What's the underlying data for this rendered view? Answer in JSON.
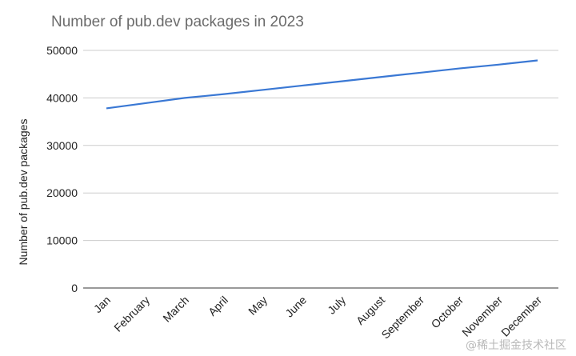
{
  "chart_data": {
    "type": "line",
    "title": "Number of pub.dev packages in 2023",
    "xlabel": "",
    "ylabel": "Number of pub.dev packages",
    "categories": [
      "Jan",
      "February",
      "March",
      "April",
      "May",
      "June",
      "July",
      "August",
      "September",
      "October",
      "November",
      "December"
    ],
    "series": [
      {
        "name": "Number of pub.dev packages",
        "color": "#3a78d4",
        "values": [
          37800,
          38900,
          40000,
          40800,
          41700,
          42600,
          43500,
          44400,
          45300,
          46200,
          47000,
          47900
        ]
      }
    ],
    "ylim": [
      0,
      50000
    ],
    "yticks": [
      0,
      10000,
      20000,
      30000,
      40000,
      50000
    ],
    "grid": true,
    "legend": "none"
  },
  "watermark": "@稀土掘金技术社区"
}
